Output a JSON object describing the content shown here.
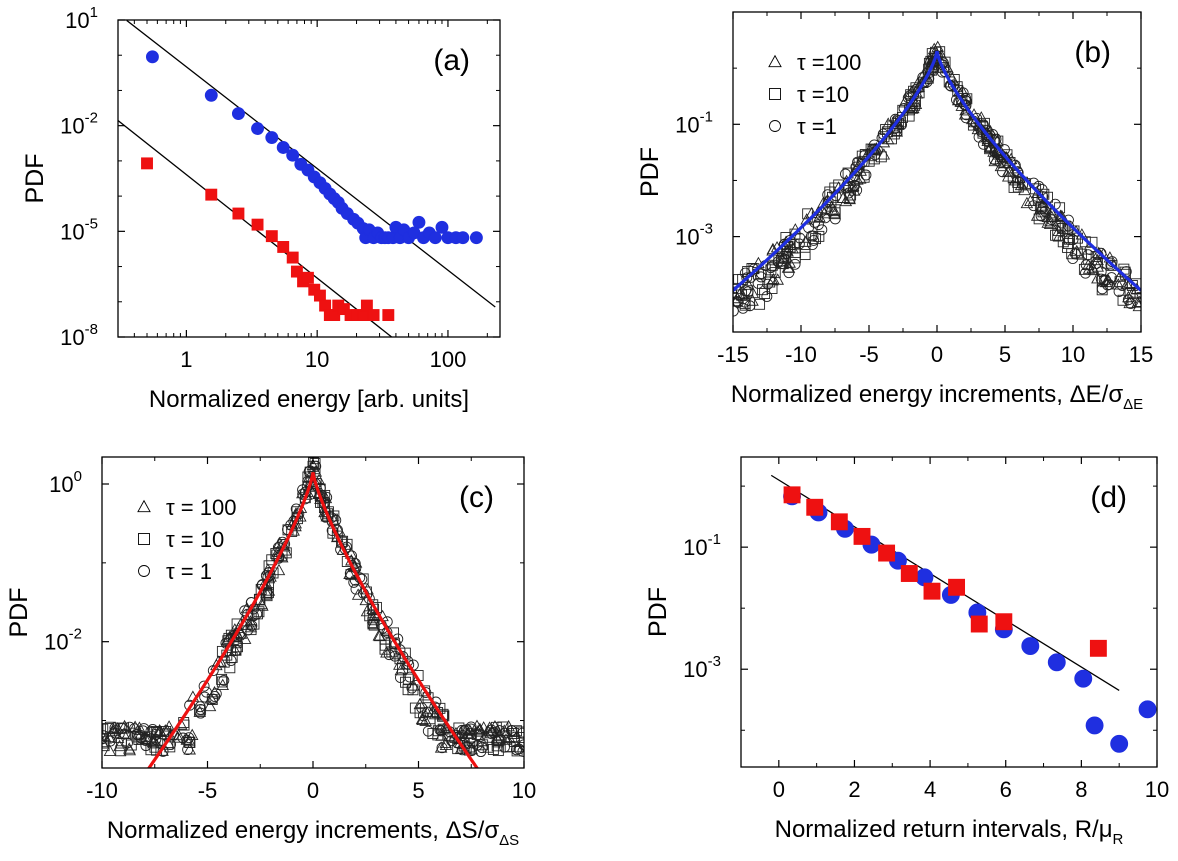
{
  "figure": {
    "panels": [
      "(a)",
      "(b)",
      "(c)",
      "(d)"
    ]
  },
  "colors": {
    "blue": "#1f2fe0",
    "red": "#ee1111",
    "black": "#000000"
  },
  "chart_data": [
    {
      "panel_label": "(a)",
      "type": "scatter",
      "xlabel": "Normalized energy [arb. units]",
      "ylabel": "PDF",
      "xscale": "log",
      "yscale": "log",
      "xlim": [
        0.3,
        250
      ],
      "ylim": [
        1e-08,
        10
      ],
      "xticks": [
        {
          "value": 1,
          "label": "1"
        },
        {
          "value": 10,
          "label": "10"
        },
        {
          "value": 100,
          "label": "100"
        }
      ],
      "yticks": [
        {
          "value": 10,
          "base": "10",
          "exp": "1"
        },
        {
          "value": 0.01,
          "base": "10",
          "exp": "-2"
        },
        {
          "value": 1e-05,
          "base": "10",
          "exp": "-5"
        },
        {
          "value": 1e-08,
          "base": "10",
          "exp": "-8"
        }
      ],
      "series": [
        {
          "marker": "circle",
          "color": "#1f2fe0",
          "points": [
            [
              0.55,
              0.9
            ],
            [
              1.55,
              0.073
            ],
            [
              2.5,
              0.022
            ],
            [
              3.5,
              0.0083
            ],
            [
              4.5,
              0.0046
            ],
            [
              5.5,
              0.0024
            ],
            [
              6.5,
              0.00145
            ],
            [
              7.5,
              0.0008
            ],
            [
              8.5,
              0.00055
            ],
            [
              9.5,
              0.00035
            ],
            [
              10.5,
              0.00024
            ],
            [
              11.5,
              0.000165
            ],
            [
              12.5,
              0.000115
            ],
            [
              13.5,
              8.5e-05
            ],
            [
              14.5,
              6.6e-05
            ],
            [
              15.5,
              4.5e-05
            ],
            [
              17.0,
              3.2e-05
            ],
            [
              19.0,
              2.2e-05
            ],
            [
              20.5,
              1.7e-05
            ],
            [
              22.5,
              1.2e-05
            ],
            [
              23.5,
              6.6e-06
            ],
            [
              25.0,
              1.1e-05
            ],
            [
              27.0,
              6.6e-06
            ],
            [
              29.0,
              9e-06
            ],
            [
              31.0,
              6.6e-06
            ],
            [
              33.0,
              6.6e-06
            ],
            [
              35.0,
              6.6e-06
            ],
            [
              38.0,
              6.6e-06
            ],
            [
              40.0,
              1.3e-05
            ],
            [
              43.0,
              6.6e-06
            ],
            [
              46.0,
              1.1e-05
            ],
            [
              50.0,
              6.6e-06
            ],
            [
              55.0,
              9e-06
            ],
            [
              60.0,
              1.8e-05
            ],
            [
              65.0,
              6.6e-06
            ],
            [
              72.0,
              9e-06
            ],
            [
              80.0,
              6.6e-06
            ],
            [
              90.0,
              1.3e-05
            ],
            [
              100.0,
              6.6e-06
            ],
            [
              115.0,
              6.6e-06
            ],
            [
              130.0,
              6.6e-06
            ],
            [
              165.0,
              6.6e-06
            ]
          ]
        },
        {
          "marker": "square",
          "color": "#ee1111",
          "points": [
            [
              0.5,
              0.00085
            ],
            [
              1.55,
              0.00011
            ],
            [
              2.5,
              3.2e-05
            ],
            [
              3.5,
              1.55e-05
            ],
            [
              4.5,
              7.3e-06
            ],
            [
              5.5,
              3.6e-06
            ],
            [
              6.5,
              1.8e-06
            ],
            [
              7.0,
              7.2e-07
            ],
            [
              7.8,
              3.8e-07
            ],
            [
              8.5,
              4.8e-07
            ],
            [
              9.5,
              2.2e-07
            ],
            [
              10.5,
              1.5e-07
            ],
            [
              11.5,
              7.8e-08
            ],
            [
              12.5,
              4.2e-08
            ],
            [
              13.5,
              4.2e-08
            ],
            [
              14.5,
              7.8e-08
            ],
            [
              16.0,
              6.2e-08
            ],
            [
              18.0,
              4.2e-08
            ],
            [
              20.0,
              4.2e-08
            ],
            [
              22.5,
              4.2e-08
            ],
            [
              24.0,
              7.8e-08
            ],
            [
              27.0,
              4.2e-08
            ],
            [
              35.0,
              4.2e-08
            ]
          ]
        }
      ],
      "fit_lines": [
        {
          "x": [
            0.35,
            230
          ],
          "y": [
            9.7,
            7.1e-08
          ]
        },
        {
          "x": [
            0.3,
            230
          ],
          "y": [
            0.014,
            4.7e-11
          ]
        }
      ]
    },
    {
      "panel_label": "(b)",
      "type": "scatter",
      "xlabel": "Normalized energy increments, ΔE/σ",
      "xlabel_sub": "ΔE",
      "ylabel": "PDF",
      "xlim": [
        -15,
        15
      ],
      "yscale": "log",
      "ylim": [
        2e-05,
        10
      ],
      "xticks": [
        -15,
        -10,
        -5,
        0,
        5,
        10,
        15
      ],
      "yticks": [
        {
          "value": 0.1,
          "base": "10",
          "exp": "-1"
        },
        {
          "value": 0.001,
          "base": "10",
          "exp": "-3"
        }
      ],
      "legend": [
        {
          "marker": "triangle",
          "label": "τ =100"
        },
        {
          "marker": "square",
          "label": "τ =10"
        },
        {
          "marker": "circle",
          "label": "τ =1"
        }
      ],
      "legend_position": "top-left",
      "curve": {
        "color": "#1f2fe0",
        "model": "laplace-like",
        "peak": 2.0,
        "scale": 1.8,
        "exponent": 0.75
      },
      "data_envelope": {
        "peak": 2.4,
        "scale": 1.6,
        "exponent": 0.75,
        "spread": 0.35,
        "floor": 5.5e-05
      },
      "markers": [
        "triangle",
        "square",
        "circle"
      ]
    },
    {
      "panel_label": "(c)",
      "type": "scatter",
      "xlabel": "Normalized energy increments, ΔS/σ",
      "xlabel_sub": "ΔS",
      "ylabel": "PDF",
      "xlim": [
        -10,
        10
      ],
      "yscale": "log",
      "ylim": [
        0.00025,
        2.2
      ],
      "xticks": [
        -10,
        -5,
        0,
        5,
        10
      ],
      "yticks": [
        {
          "value": 1,
          "base": "10",
          "exp": "0"
        },
        {
          "value": 0.01,
          "base": "10",
          "exp": "-2"
        }
      ],
      "legend": [
        {
          "marker": "triangle",
          "label": "τ = 100"
        },
        {
          "marker": "square",
          "label": "τ = 10"
        },
        {
          "marker": "circle",
          "label": "τ = 1"
        }
      ],
      "legend_position": "top-left",
      "curve": {
        "color": "#ee1111",
        "model": "laplace-like",
        "peak": 1.4,
        "scale": 1.25,
        "exponent": 0.8
      },
      "data_envelope": {
        "peak": 1.8,
        "scale": 1.1,
        "exponent": 0.8,
        "spread": 0.3,
        "floor": 0.0005
      },
      "markers": [
        "triangle",
        "square",
        "circle"
      ]
    },
    {
      "panel_label": "(d)",
      "type": "scatter",
      "xlabel": "Normalized return intervals, R/μ",
      "xlabel_sub": "R",
      "ylabel": "PDF",
      "xlim": [
        -1,
        10
      ],
      "yscale": "log",
      "ylim": [
        2.5e-05,
        3
      ],
      "xticks": [
        0,
        2,
        4,
        6,
        8,
        10
      ],
      "yticks": [
        {
          "value": 0.1,
          "base": "10",
          "exp": "-1"
        },
        {
          "value": 0.001,
          "base": "10",
          "exp": "-3"
        }
      ],
      "series": [
        {
          "marker": "circle",
          "color": "#1f2fe0",
          "points": [
            [
              0.35,
              0.68
            ],
            [
              1.05,
              0.37
            ],
            [
              1.75,
              0.2
            ],
            [
              2.45,
              0.11
            ],
            [
              3.15,
              0.06
            ],
            [
              3.85,
              0.032
            ],
            [
              4.55,
              0.0165
            ],
            [
              5.25,
              0.0085
            ],
            [
              5.95,
              0.0045
            ],
            [
              6.65,
              0.0024
            ],
            [
              7.35,
              0.0013
            ],
            [
              8.05,
              0.0007
            ],
            [
              8.35,
              0.00012
            ],
            [
              9.0,
              6e-05
            ],
            [
              9.75,
              0.00022
            ]
          ]
        },
        {
          "marker": "square",
          "color": "#ee1111",
          "points": [
            [
              0.35,
              0.72
            ],
            [
              0.95,
              0.45
            ],
            [
              1.6,
              0.26
            ],
            [
              2.2,
              0.15
            ],
            [
              2.85,
              0.08
            ],
            [
              3.45,
              0.037
            ],
            [
              4.05,
              0.019
            ],
            [
              4.7,
              0.022
            ],
            [
              5.3,
              0.0055
            ],
            [
              5.95,
              0.006
            ],
            [
              8.45,
              0.0022
            ]
          ]
        }
      ],
      "fit_lines": [
        {
          "x": [
            -0.2,
            9.0
          ],
          "y": [
            1.5,
            0.00045
          ]
        }
      ]
    }
  ]
}
